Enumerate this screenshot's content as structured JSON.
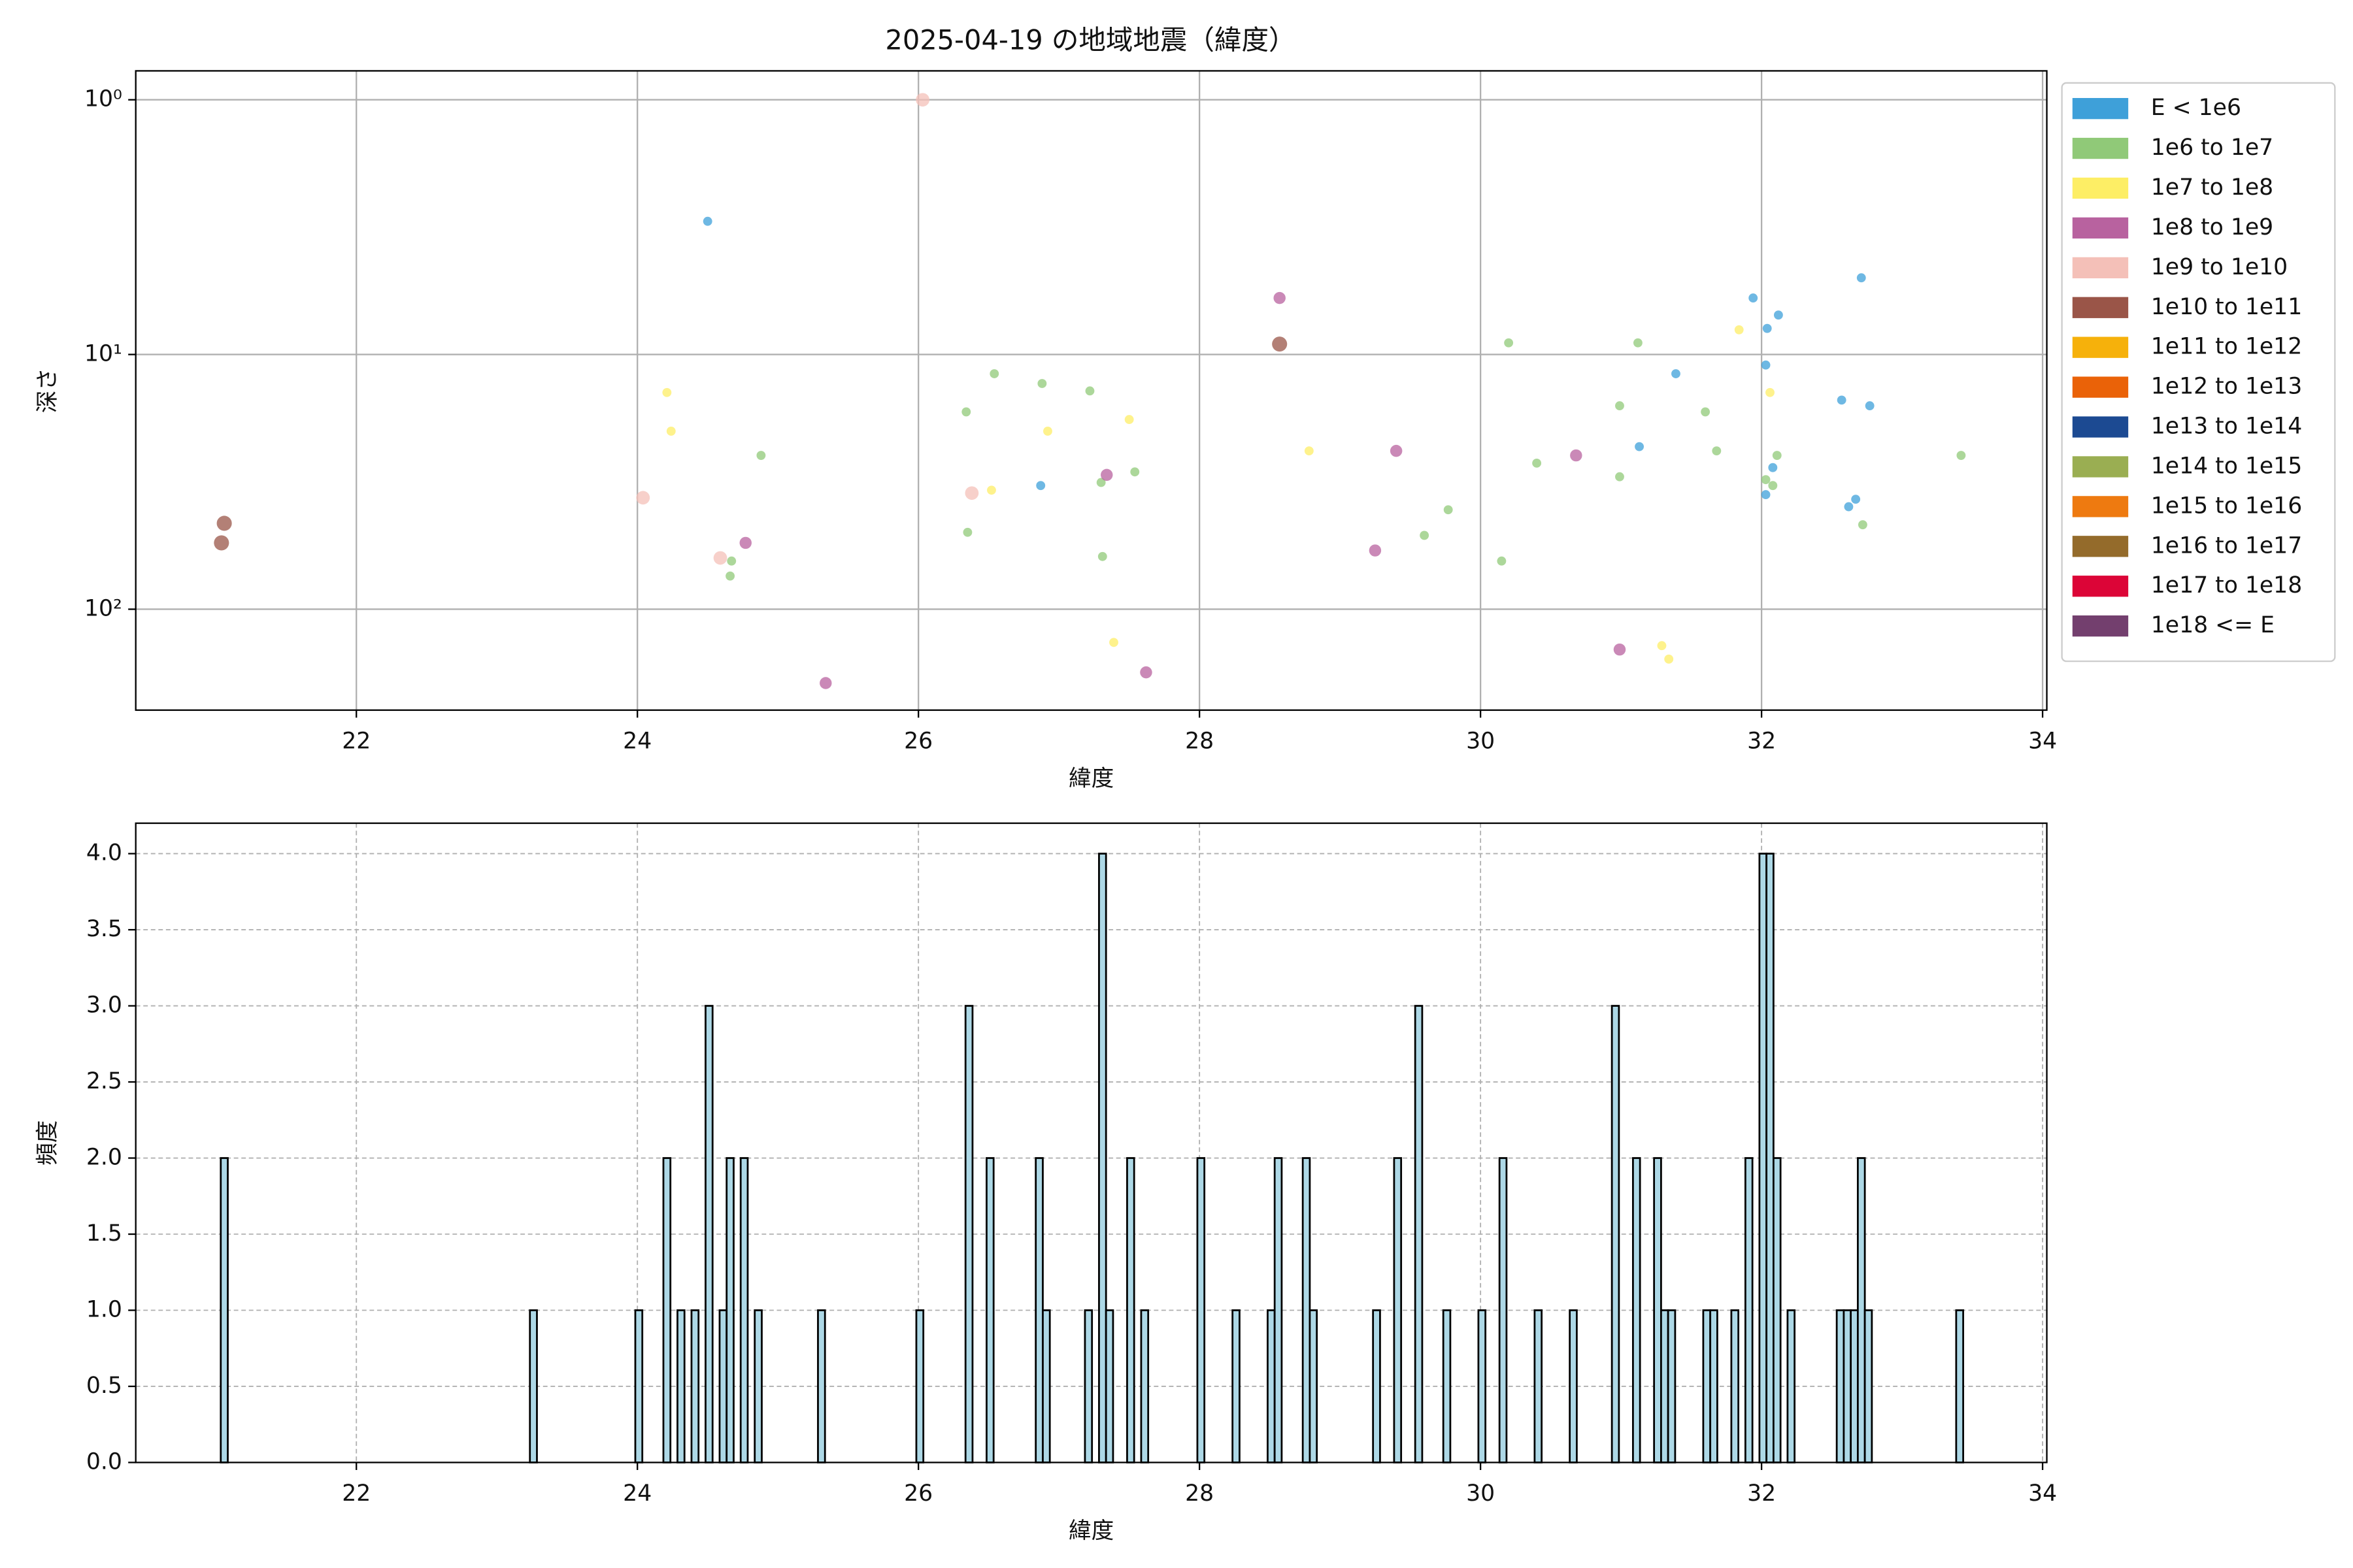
{
  "chart_data": [
    {
      "type": "scatter",
      "title": "2025-04-19 の地域地震（緯度）",
      "xlabel": "緯度",
      "ylabel": "深さ",
      "xlim": [
        20.43,
        34.03
      ],
      "xticks": [
        22,
        24,
        26,
        28,
        30,
        32,
        34
      ],
      "yscale": "log",
      "y_inverted": true,
      "ylim": [
        0.77,
        249
      ],
      "yticks": [
        {
          "value": 1,
          "label": "10⁰"
        },
        {
          "value": 10,
          "label": "10¹"
        },
        {
          "value": 100,
          "label": "10²"
        }
      ],
      "grid": true,
      "legend": "outside-right",
      "series": [
        {
          "name": "E < 1e6",
          "color": "#3ea0d9",
          "marker_size": 3,
          "x": [
            24.5,
            26.87,
            31.13,
            31.39,
            31.94,
            32.03,
            32.04,
            32.08,
            32.03,
            32.12,
            32.71,
            32.57,
            32.77,
            32.67,
            32.62
          ],
          "values": [
            3.0,
            32.7,
            23,
            11.9,
            6.0,
            11.0,
            7.9,
            27.8,
            35.5,
            7.0,
            5.0,
            15.1,
            15.9,
            37.0,
            39.6
          ]
        },
        {
          "name": "1e6 to 1e7",
          "color": "#90c978",
          "marker_size": 3,
          "x": [
            24.88,
            24.67,
            24.66,
            26.34,
            26.54,
            26.35,
            26.88,
            27.22,
            27.3,
            27.31,
            27.54,
            29.6,
            29.77,
            30.15,
            30.2,
            30.4,
            30.99,
            30.99,
            31.12,
            31.6,
            31.68,
            32.03,
            32.08,
            32.11,
            32.72,
            33.42
          ],
          "values": [
            24.9,
            64.7,
            74.1,
            16.8,
            11.9,
            49.9,
            13.0,
            13.9,
            31.8,
            62.1,
            28.9,
            51.3,
            40.7,
            64.7,
            9.0,
            26.7,
            15.9,
            30.2,
            9.0,
            16.8,
            23.9,
            31.0,
            32.7,
            24.9,
            46.6,
            24.9
          ]
        },
        {
          "name": "1e7 to 1e8",
          "color": "#fdee65",
          "marker_size": 3,
          "x": [
            24.21,
            24.24,
            26.52,
            26.92,
            27.5,
            27.39,
            28.78,
            31.84,
            32.06,
            31.29,
            31.34
          ],
          "values": [
            14.1,
            20.0,
            34.1,
            20.0,
            18.0,
            135,
            23.9,
            8.0,
            14.1,
            139,
            157
          ]
        },
        {
          "name": "1e8 to 1e9",
          "color": "#b8629f",
          "marker_size": 4,
          "x": [
            24.77,
            25.34,
            27.34,
            27.62,
            28.57,
            29.25,
            29.4,
            30.68,
            30.99
          ],
          "values": [
            54.9,
            195,
            29.7,
            177,
            6.0,
            58.8,
            23.9,
            24.9,
            144
          ]
        },
        {
          "name": "1e9 to 1e10",
          "color": "#f4c0b8",
          "marker_size": 4.5,
          "x": [
            26.03,
            24.04,
            24.59,
            26.38
          ],
          "values": [
            1.0,
            36.5,
            62.9,
            35.0
          ]
        },
        {
          "name": "1e10 to 1e11",
          "color": "#9a5548",
          "marker_size": 5,
          "x": [
            21.06,
            21.04,
            28.57
          ],
          "values": [
            46.0,
            54.9,
            9.1
          ]
        },
        {
          "name": "1e11 to 1e12",
          "color": "#f6b10b",
          "x": [],
          "values": []
        },
        {
          "name": "1e12 to 1e13",
          "color": "#ea6208",
          "x": [],
          "values": []
        },
        {
          "name": "1e13 to 1e14",
          "color": "#1c4a92",
          "x": [],
          "values": []
        },
        {
          "name": "1e14 to 1e15",
          "color": "#9aae52",
          "x": [],
          "values": []
        },
        {
          "name": "1e15 to 1e16",
          "color": "#ee7a10",
          "x": [],
          "values": []
        },
        {
          "name": "1e16 to 1e17",
          "color": "#946b2b",
          "x": [],
          "values": []
        },
        {
          "name": "1e17 to 1e18",
          "color": "#dc0537",
          "x": [],
          "values": []
        },
        {
          "name": "1e18 <= E",
          "color": "#733f6e",
          "x": [],
          "values": []
        }
      ]
    },
    {
      "type": "histogram",
      "xlabel": "緯度",
      "ylabel": "頻度",
      "xlim": [
        20.43,
        34.03
      ],
      "xticks": [
        22,
        24,
        26,
        28,
        30,
        32,
        34
      ],
      "ylim": [
        0,
        4.2
      ],
      "yticks": [
        {
          "value": 0,
          "label": "0.0"
        },
        {
          "value": 0.5,
          "label": "0.5"
        },
        {
          "value": 1,
          "label": "1.0"
        },
        {
          "value": 1.5,
          "label": "1.5"
        },
        {
          "value": 2,
          "label": "2.0"
        },
        {
          "value": 2.5,
          "label": "2.5"
        },
        {
          "value": 3,
          "label": "3.0"
        },
        {
          "value": 3.5,
          "label": "3.5"
        },
        {
          "value": 4,
          "label": "4.0"
        }
      ],
      "grid": "dashed",
      "color": "#add8e6",
      "edgecolor": "#000000",
      "bins": [
        21.035,
        21.085,
        23.235,
        23.285,
        23.985,
        24.035,
        24.185,
        24.235,
        24.285,
        24.335,
        24.385,
        24.435,
        24.485,
        24.535,
        24.585,
        24.635,
        24.685,
        24.735,
        24.785,
        24.835,
        24.885,
        25.285,
        25.335,
        25.985,
        26.035,
        26.335,
        26.385,
        26.485,
        26.535,
        26.835,
        26.885,
        26.935,
        27.185,
        27.235,
        27.285,
        27.335,
        27.385,
        27.485,
        27.535,
        27.585,
        27.635,
        27.985,
        28.035,
        28.235,
        28.285,
        28.485,
        28.535,
        28.585,
        28.735,
        28.785,
        28.835,
        29.235,
        29.285,
        29.385,
        29.435,
        29.535,
        29.585,
        29.735,
        29.785,
        29.985,
        30.035,
        30.135,
        30.185,
        30.385,
        30.435,
        30.635,
        30.685,
        30.935,
        30.985,
        31.085,
        31.135,
        31.235,
        31.285,
        31.335,
        31.385,
        31.585,
        31.635,
        31.685,
        31.785,
        31.835,
        31.885,
        31.935,
        31.985,
        32.035,
        32.085,
        32.135,
        32.185,
        32.235,
        32.535,
        32.585,
        32.635,
        32.685,
        32.735,
        32.785,
        33.385,
        33.435
      ],
      "counts": [
        2,
        0,
        1,
        0,
        1,
        0,
        2,
        0,
        1,
        0,
        1,
        0,
        3,
        0,
        1,
        2,
        0,
        2,
        0,
        1,
        0,
        1,
        0,
        1,
        0,
        3,
        0,
        2,
        0,
        2,
        1,
        0,
        1,
        0,
        4,
        1,
        0,
        2,
        0,
        1,
        0,
        2,
        0,
        1,
        0,
        1,
        2,
        0,
        2,
        1,
        0,
        1,
        0,
        2,
        0,
        3,
        0,
        1,
        0,
        1,
        0,
        2,
        0,
        1,
        0,
        1,
        0,
        3,
        0,
        2,
        0,
        2,
        1,
        1,
        0,
        1,
        1,
        0,
        1,
        0,
        2,
        0,
        4,
        4,
        2,
        0,
        1,
        0,
        1,
        1,
        1,
        2,
        1,
        0,
        1
      ]
    }
  ]
}
